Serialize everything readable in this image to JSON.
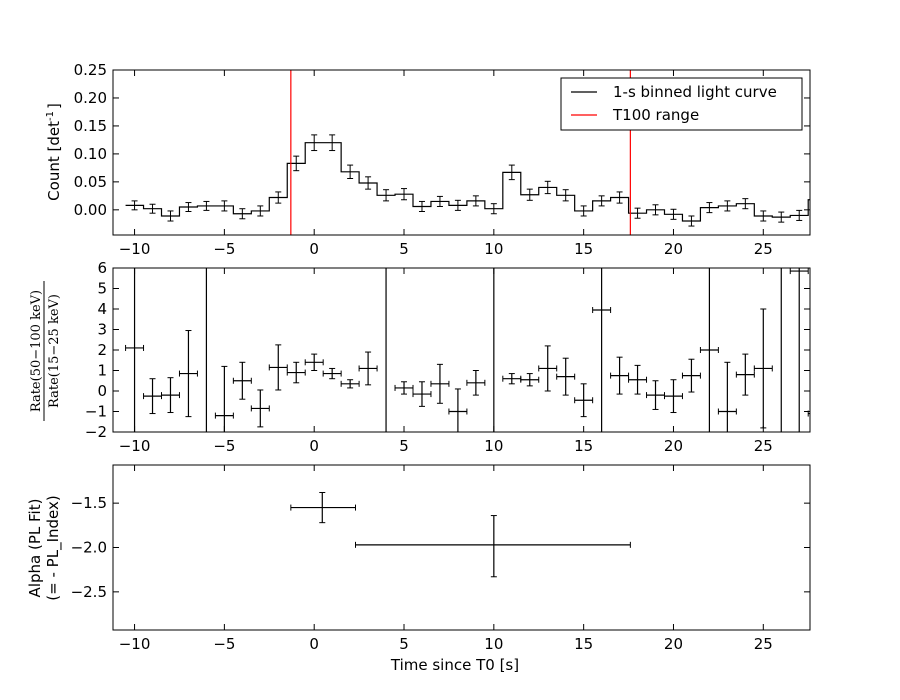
{
  "chart_data": [
    {
      "type": "line",
      "panel": "top",
      "ylabel": "Count [det",
      "ylabel_sup": "-1",
      "ylabel_close": "]",
      "xlim": [
        -11.2,
        27.6
      ],
      "ylim": [
        -0.045,
        0.25
      ],
      "xticks": [
        -10,
        -5,
        0,
        5,
        10,
        15,
        20,
        25
      ],
      "yticks": [
        0.0,
        0.05,
        0.1,
        0.15,
        0.2,
        0.25
      ],
      "ytick_labels": [
        "0.00",
        "0.05",
        "0.10",
        "0.15",
        "0.20",
        "0.25"
      ],
      "legend_position": "top-right",
      "legend": [
        {
          "label": "1-s binned light curve",
          "color": "#000000"
        },
        {
          "label": "T100 range",
          "color": "#ff0000"
        }
      ],
      "t100_range": [
        -1.3,
        17.6
      ],
      "bin_start": -10.5,
      "bin_width": 1,
      "series": [
        {
          "values": [
            0.008,
            0.002,
            -0.011,
            0.005,
            0.007,
            0.007,
            -0.007,
            -0.002,
            0.022,
            0.083,
            0.12,
            0.12,
            0.068,
            0.048,
            0.026,
            0.028,
            0.006,
            0.015,
            0.008,
            0.016,
            0.002,
            0.067,
            0.027,
            0.04,
            0.026,
            -0.002,
            0.016,
            0.022,
            -0.006,
            0.0,
            -0.008,
            -0.02,
            0.004,
            0.007,
            0.011,
            -0.011,
            -0.013,
            -0.01,
            0.018
          ],
          "errors": [
            0.008,
            0.008,
            0.009,
            0.008,
            0.008,
            0.009,
            0.009,
            0.009,
            0.01,
            0.013,
            0.014,
            0.014,
            0.012,
            0.011,
            0.01,
            0.01,
            0.009,
            0.009,
            0.009,
            0.009,
            0.009,
            0.013,
            0.01,
            0.011,
            0.01,
            0.009,
            0.009,
            0.01,
            0.009,
            0.009,
            0.009,
            0.009,
            0.009,
            0.009,
            0.009,
            0.009,
            0.009,
            0.009,
            0.009
          ]
        }
      ]
    },
    {
      "type": "scatter",
      "panel": "middle",
      "ylabel_num": "Rate(50−100 keV)",
      "ylabel_den": "Rate(15−25 keV)",
      "xlim": [
        -11.2,
        27.6
      ],
      "ylim": [
        -2,
        6
      ],
      "xticks": [
        -10,
        -5,
        0,
        5,
        10,
        15,
        20,
        25
      ],
      "yticks": [
        -2,
        -1,
        0,
        1,
        2,
        3,
        4,
        5,
        6
      ],
      "vlines": [
        -10,
        -6,
        4,
        10,
        16,
        22,
        26,
        27
      ],
      "points": [
        {
          "x": -10,
          "y": 2.1,
          "xerr": 0.5,
          "yerr": 0
        },
        {
          "x": -9,
          "y": -0.25,
          "xerr": 0.5,
          "yerr": 0.85
        },
        {
          "x": -8,
          "y": -0.2,
          "xerr": 0.5,
          "yerr": 0.85
        },
        {
          "x": -7,
          "y": 0.85,
          "xerr": 0.5,
          "yerr": 2.1
        },
        {
          "x": -5,
          "y": -1.2,
          "xerr": 0.5,
          "yerr": 2.4
        },
        {
          "x": -4,
          "y": 0.5,
          "xerr": 0.5,
          "yerr": 0.9
        },
        {
          "x": -3,
          "y": -0.85,
          "xerr": 0.5,
          "yerr": 0.9
        },
        {
          "x": -2,
          "y": 1.15,
          "xerr": 0.5,
          "yerr": 1.1
        },
        {
          "x": -1,
          "y": 0.9,
          "xerr": 0.5,
          "yerr": 0.5
        },
        {
          "x": 0,
          "y": 1.4,
          "xerr": 0.5,
          "yerr": 0.4
        },
        {
          "x": 1,
          "y": 0.85,
          "xerr": 0.5,
          "yerr": 0.25
        },
        {
          "x": 2,
          "y": 0.35,
          "xerr": 0.5,
          "yerr": 0.2
        },
        {
          "x": 3,
          "y": 1.1,
          "xerr": 0.5,
          "yerr": 0.8
        },
        {
          "x": 5,
          "y": 0.15,
          "xerr": 0.5,
          "yerr": 0.3
        },
        {
          "x": 6,
          "y": -0.15,
          "xerr": 0.5,
          "yerr": 0.6
        },
        {
          "x": 7,
          "y": 0.35,
          "xerr": 0.5,
          "yerr": 0.95
        },
        {
          "x": 8,
          "y": -1.0,
          "xerr": 0.5,
          "yerr": 1.1
        },
        {
          "x": 9,
          "y": 0.4,
          "xerr": 0.5,
          "yerr": 0.6
        },
        {
          "x": 11,
          "y": 0.6,
          "xerr": 0.5,
          "yerr": 0.25
        },
        {
          "x": 12,
          "y": 0.55,
          "xerr": 0.5,
          "yerr": 0.3
        },
        {
          "x": 13,
          "y": 1.1,
          "xerr": 0.5,
          "yerr": 1.1
        },
        {
          "x": 14,
          "y": 0.7,
          "xerr": 0.5,
          "yerr": 0.9
        },
        {
          "x": 15,
          "y": -0.45,
          "xerr": 0.5,
          "yerr": 0.8
        },
        {
          "x": 16,
          "y": 3.95,
          "xerr": 0.5,
          "yerr": 0
        },
        {
          "x": 17,
          "y": 0.75,
          "xerr": 0.5,
          "yerr": 0.9
        },
        {
          "x": 18,
          "y": 0.55,
          "xerr": 0.5,
          "yerr": 0.7
        },
        {
          "x": 19,
          "y": -0.2,
          "xerr": 0.5,
          "yerr": 0.7
        },
        {
          "x": 20,
          "y": -0.25,
          "xerr": 0.5,
          "yerr": 0.8
        },
        {
          "x": 21,
          "y": 0.75,
          "xerr": 0.5,
          "yerr": 0.8
        },
        {
          "x": 22,
          "y": 2.0,
          "xerr": 0.5,
          "yerr": 0
        },
        {
          "x": 23,
          "y": -1.0,
          "xerr": 0.5,
          "yerr": 2.4
        },
        {
          "x": 24,
          "y": 0.8,
          "xerr": 0.5,
          "yerr": 1.0
        },
        {
          "x": 25,
          "y": 1.1,
          "xerr": 0.5,
          "yerr": 2.9
        },
        {
          "x": 27,
          "y": 5.85,
          "xerr": 0.5,
          "yerr": 0
        },
        {
          "x": 28,
          "y": -1.1,
          "xerr": 0.5,
          "yerr": 0
        }
      ]
    },
    {
      "type": "scatter",
      "panel": "bottom",
      "ylabel_line1": "Alpha (PL Fit)",
      "ylabel_line2": "(= - PL_Index)",
      "xlabel": "Time since T0 [s]",
      "xlim": [
        -11.2,
        27.6
      ],
      "ylim": [
        -2.93,
        -1.07
      ],
      "xticks": [
        -10,
        -5,
        0,
        5,
        10,
        15,
        20,
        25
      ],
      "yticks": [
        -2.5,
        -2.0,
        -1.5
      ],
      "ytick_labels": [
        "−2.5",
        "−2.0",
        "−1.5"
      ],
      "points": [
        {
          "x": 0.45,
          "y": -1.55,
          "xlo": -1.3,
          "xhi": 2.3,
          "ylo": -1.72,
          "yhi": -1.38
        },
        {
          "x": 10.0,
          "y": -1.97,
          "xlo": 2.3,
          "xhi": 17.6,
          "ylo": -2.33,
          "yhi": -1.64
        }
      ]
    }
  ]
}
